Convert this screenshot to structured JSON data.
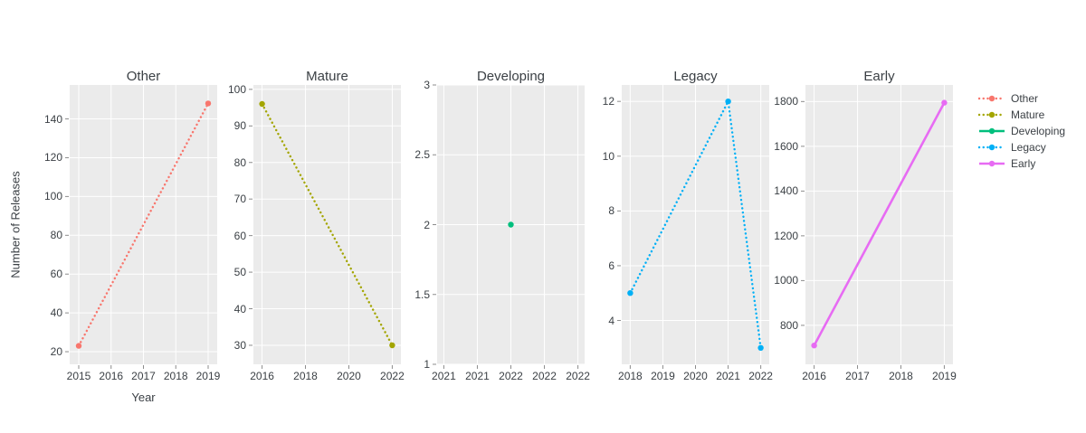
{
  "figure": {
    "y_axis_title": "Number of Releases",
    "x_axis_title": "Year",
    "colors": {
      "background": "#FFFFFF",
      "panel_bg": "#EBEBEB",
      "grid": "#FFFFFF",
      "tick_mark": "#8C8C8C",
      "text": "#3B4045"
    }
  },
  "chart_data": {
    "type": "line",
    "title": "",
    "xlabel": "Year",
    "ylabel": "Number of Releases",
    "grid": true,
    "legend_position": "top-right",
    "panels": [
      {
        "title": "Other",
        "color": "#F8766D",
        "dash": "dot",
        "x": [
          2015,
          2019
        ],
        "y": [
          23,
          148
        ],
        "xrange": [
          2014.72,
          2019.28
        ],
        "yrange": [
          13.5,
          157.5
        ],
        "xtick_vals": [
          2015,
          2016,
          2017,
          2018,
          2019
        ],
        "xtick_labels": [
          "2015",
          "2016",
          "2017",
          "2018",
          "2019"
        ],
        "ytick_vals": [
          20,
          40,
          60,
          80,
          100,
          120,
          140
        ],
        "ytick_labels": [
          "20",
          "40",
          "60",
          "80",
          "100",
          "120",
          "140"
        ]
      },
      {
        "title": "Mature",
        "color": "#A3A500",
        "dash": "dot",
        "x": [
          2016,
          2022
        ],
        "y": [
          96,
          30
        ],
        "xrange": [
          2015.6,
          2022.4
        ],
        "yrange": [
          24.8,
          101.2
        ],
        "xtick_vals": [
          2016,
          2018,
          2020,
          2022
        ],
        "xtick_labels": [
          "2016",
          "2018",
          "2020",
          "2022"
        ],
        "ytick_vals": [
          30,
          40,
          50,
          60,
          70,
          80,
          90,
          100
        ],
        "ytick_labels": [
          "30",
          "40",
          "50",
          "60",
          "70",
          "80",
          "90",
          "100"
        ]
      },
      {
        "title": "Developing",
        "color": "#00BF7D",
        "dash": "solid",
        "x": [
          2022
        ],
        "y": [
          2
        ],
        "xrange": [
          2021.45,
          2022.55
        ],
        "yrange": [
          1,
          3
        ],
        "xtick_vals": [
          2021.5,
          2021.75,
          2022,
          2022.25,
          2022.5
        ],
        "xtick_labels": [
          "2021",
          "2021",
          "2022",
          "2022",
          "2022"
        ],
        "ytick_vals": [
          1,
          1.5,
          2,
          2.5,
          3
        ],
        "ytick_labels": [
          "1",
          "1.5",
          "2",
          "2.5",
          "3"
        ]
      },
      {
        "title": "Legacy",
        "color": "#00B0F6",
        "dash": "dot",
        "x": [
          2018,
          2021,
          2022
        ],
        "y": [
          5,
          12,
          3
        ],
        "xrange": [
          2017.74,
          2022.26
        ],
        "yrange": [
          2.4,
          12.6
        ],
        "xtick_vals": [
          2018,
          2019,
          2020,
          2021,
          2022
        ],
        "xtick_labels": [
          "2018",
          "2019",
          "2020",
          "2021",
          "2022"
        ],
        "ytick_vals": [
          4,
          6,
          8,
          10,
          12
        ],
        "ytick_labels": [
          "4",
          "6",
          "8",
          "10",
          "12"
        ]
      },
      {
        "title": "Early",
        "color": "#E76BF3",
        "dash": "solid",
        "x": [
          2016,
          2019
        ],
        "y": [
          710,
          1795
        ],
        "xrange": [
          2015.8,
          2019.2
        ],
        "yrange": [
          626,
          1874
        ],
        "xtick_vals": [
          2016,
          2017,
          2018,
          2019
        ],
        "xtick_labels": [
          "2016",
          "2017",
          "2018",
          "2019"
        ],
        "ytick_vals": [
          800,
          1000,
          1200,
          1400,
          1600,
          1800
        ],
        "ytick_labels": [
          "800",
          "1000",
          "1200",
          "1400",
          "1600",
          "1800"
        ]
      }
    ],
    "legend": [
      {
        "label": "Other",
        "color": "#F8766D",
        "dash": "dot"
      },
      {
        "label": "Mature",
        "color": "#A3A500",
        "dash": "dot"
      },
      {
        "label": "Developing",
        "color": "#00BF7D",
        "dash": "solid"
      },
      {
        "label": "Legacy",
        "color": "#00B0F6",
        "dash": "dot"
      },
      {
        "label": "Early",
        "color": "#E76BF3",
        "dash": "solid"
      }
    ]
  }
}
